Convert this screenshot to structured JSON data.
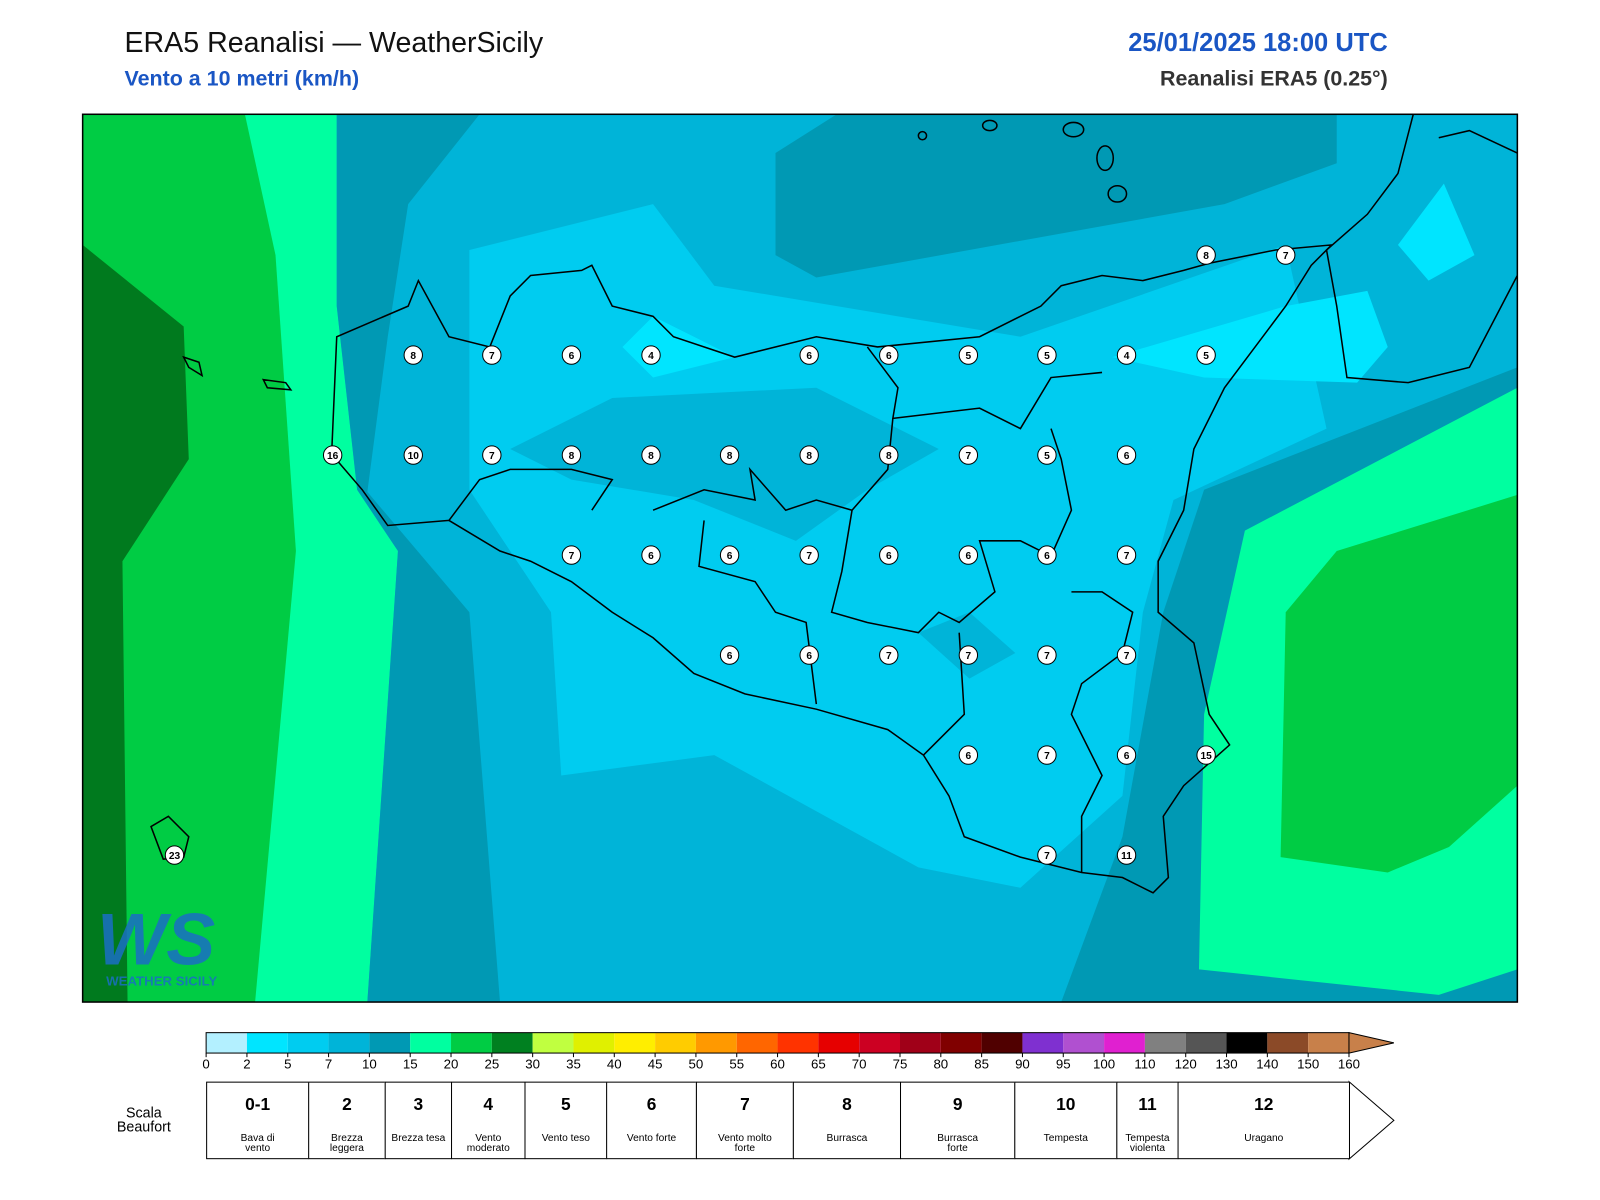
{
  "header": {
    "title": "ERA5 Reanalisi — WeatherSicily",
    "subtitle": "Vento a 10 metri (km/h)",
    "datetime": "25/01/2025 18:00 UTC",
    "source": "Reanalisi ERA5 (0.25°)"
  },
  "stations": {
    "values": [
      8,
      7,
      8,
      7,
      6,
      4,
      6,
      6,
      5,
      5,
      4,
      5,
      16,
      10,
      7,
      8,
      8,
      8,
      8,
      8,
      7,
      5,
      6,
      7,
      6,
      6,
      7,
      6,
      6,
      6,
      7,
      6,
      6,
      7,
      7,
      7,
      7,
      6,
      7,
      6,
      15,
      7,
      11,
      23
    ]
  },
  "colorbar": {
    "ticks": [
      0,
      2,
      5,
      7,
      10,
      15,
      20,
      25,
      30,
      35,
      40,
      45,
      50,
      55,
      60,
      65,
      70,
      75,
      80,
      85,
      90,
      95,
      100,
      110,
      120,
      130,
      140,
      150,
      160
    ],
    "colors": [
      "#b3f0ff",
      "#00e5ff",
      "#00ccf0",
      "#00b4d8",
      "#0099b4",
      "#00ffa0",
      "#00cc44",
      "#008020",
      "#c0ff40",
      "#e0f000",
      "#ffee00",
      "#ffcc00",
      "#ff9900",
      "#ff6600",
      "#ff3300",
      "#e60000",
      "#cc0022",
      "#a00018",
      "#800000",
      "#500000",
      "#7f30d0",
      "#b050d0",
      "#e020d0",
      "#808080",
      "#555555",
      "#000000",
      "#8b4a28",
      "#c8804a"
    ]
  },
  "beaufort": {
    "label": "Scala Beaufort",
    "levels": [
      {
        "number": "0-1",
        "name": "Bava di vento"
      },
      {
        "number": 2,
        "name": "Brezza leggera"
      },
      {
        "number": 3,
        "name": "Brezza tesa"
      },
      {
        "number": 4,
        "name": "Vento moderato"
      },
      {
        "number": 5,
        "name": "Vento teso"
      },
      {
        "number": 6,
        "name": "Vento forte"
      },
      {
        "number": 7,
        "name": "Vento molto forte"
      },
      {
        "number": 8,
        "name": "Burrasca"
      },
      {
        "number": 9,
        "name": "Burrasca forte"
      },
      {
        "number": 10,
        "name": "Tempesta"
      },
      {
        "number": 11,
        "name": "Tempesta violenta"
      },
      {
        "number": 12,
        "name": "Uragano"
      }
    ]
  },
  "logo": {
    "mark": "WS",
    "name": "WEATHER SICILY"
  }
}
